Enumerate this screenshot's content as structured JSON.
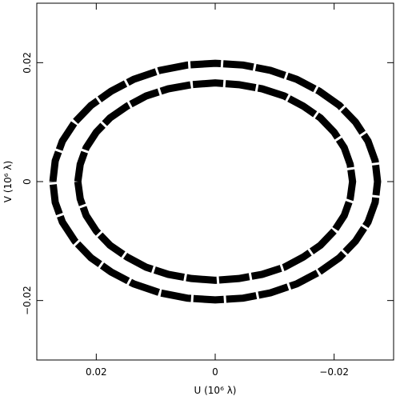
{
  "chart_data": {
    "type": "line",
    "xlabel": "U (10⁶ λ)",
    "ylabel": "V (10⁶ λ)",
    "xlim": [
      0.03,
      -0.03
    ],
    "ylim": [
      -0.03,
      0.03
    ],
    "xticks": [
      {
        "value": 0.02,
        "label": "0.02"
      },
      0,
      {
        "value": -0.02,
        "label": "−0.02"
      }
    ],
    "yticks": [
      {
        "value": -0.02,
        "label": "−0.02"
      },
      0,
      {
        "value": 0.02,
        "label": "0.02"
      }
    ],
    "series": [
      {
        "color": "#000000",
        "x": [
          0.0273,
          0.0269,
          0.0257,
          0.0236,
          0.0209,
          0.0175,
          0.0137,
          0.0093,
          0.0047,
          0,
          -0.0047,
          -0.0093,
          -0.0137,
          -0.0175,
          -0.0209,
          -0.0236,
          -0.0257,
          -0.0269,
          -0.0273,
          -0.0269,
          -0.0257,
          -0.0236,
          -0.0209,
          -0.0175,
          -0.0137,
          -0.0093,
          -0.0047,
          0,
          0.0047,
          0.0093,
          0.0137,
          0.0175,
          0.0209,
          0.0236,
          0.0257,
          0.0269,
          0.0273
        ],
        "values": [
          0,
          0.0035,
          0.0068,
          0.01,
          0.0128,
          0.0152,
          0.0172,
          0.0187,
          0.0196,
          0.0199,
          0.0196,
          0.0187,
          0.0172,
          0.0152,
          0.0128,
          0.01,
          0.0068,
          0.0035,
          0,
          -0.0035,
          -0.0068,
          -0.01,
          -0.0128,
          -0.0152,
          -0.0172,
          -0.0187,
          -0.0196,
          -0.0199,
          -0.0196,
          -0.0187,
          -0.0172,
          -0.0152,
          -0.0128,
          -0.01,
          -0.0068,
          -0.0035,
          0
        ]
      },
      {
        "color": "#000000",
        "x": [
          0.0231,
          0.0227,
          0.0217,
          0.02,
          0.0177,
          0.0148,
          0.0116,
          0.0079,
          0.004,
          0,
          -0.004,
          -0.0079,
          -0.0116,
          -0.0148,
          -0.0177,
          -0.02,
          -0.0217,
          -0.0227,
          -0.0231,
          -0.0227,
          -0.0217,
          -0.02,
          -0.0177,
          -0.0148,
          -0.0116,
          -0.0079,
          -0.004,
          0,
          0.004,
          0.0079,
          0.0116,
          0.0148,
          0.0177,
          0.02,
          0.0217,
          0.0227,
          0.0231
        ],
        "values": [
          0,
          0.0029,
          0.0057,
          0.0083,
          0.0107,
          0.0127,
          0.0144,
          0.0156,
          0.0163,
          0.0166,
          0.0163,
          0.0156,
          0.0144,
          0.0127,
          0.0107,
          0.0083,
          0.0057,
          0.0029,
          0,
          -0.0029,
          -0.0057,
          -0.0083,
          -0.0107,
          -0.0127,
          -0.0144,
          -0.0156,
          -0.0163,
          -0.0166,
          -0.0163,
          -0.0156,
          -0.0144,
          -0.0127,
          -0.0107,
          -0.0083,
          -0.0057,
          -0.0029,
          0
        ]
      }
    ]
  }
}
